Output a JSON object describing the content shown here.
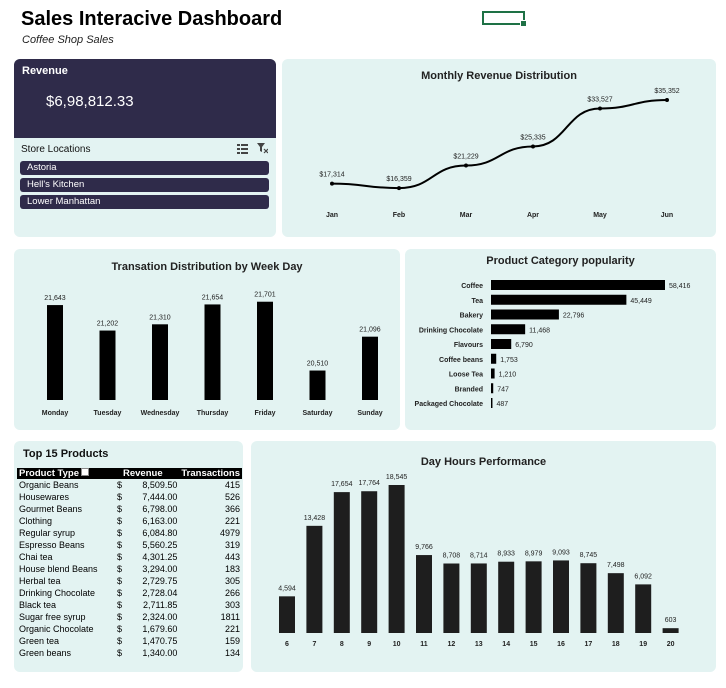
{
  "header": {
    "title": "Sales Interacive Dashboard",
    "subtitle": "Coffee Shop Sales"
  },
  "revenue": {
    "label": "Revenue",
    "value": "$6,98,812.33"
  },
  "slicer": {
    "title": "Store Locations",
    "items": [
      "Astoria",
      "Hell's Kitchen",
      "Lower Manhattan"
    ]
  },
  "colors": {
    "panel_bg": "#e3f3f2",
    "dark": "#2f2b4a",
    "bar": "#000000"
  },
  "chart_data": [
    {
      "id": "monthly",
      "type": "line",
      "title": "Monthly Revenue Distribution",
      "categories": [
        "Jan",
        "Feb",
        "Mar",
        "Apr",
        "May",
        "Jun"
      ],
      "values": [
        17314,
        16359,
        21229,
        25335,
        33527,
        35352
      ],
      "labels": [
        "$17,314",
        "$16,359",
        "$21,229",
        "$25,335",
        "$33,527",
        "$35,352"
      ],
      "ylim": [
        14000,
        36000
      ]
    },
    {
      "id": "weekday",
      "type": "bar",
      "title": "Transation Distribution by Week Day",
      "categories": [
        "Monday",
        "Tuesday",
        "Wednesday",
        "Thursday",
        "Friday",
        "Saturday",
        "Sunday"
      ],
      "values": [
        21643,
        21202,
        21310,
        21654,
        21701,
        20510,
        21096
      ],
      "labels": [
        "21,643",
        "21,202",
        "21,310",
        "21,654",
        "21,701",
        "20,510",
        "21,096"
      ],
      "ylim": [
        20000,
        21800
      ]
    },
    {
      "id": "category",
      "type": "bar",
      "orientation": "horizontal",
      "title": "Product Category popularity",
      "categories": [
        "Coffee",
        "Tea",
        "Bakery",
        "Drinking Chocolate",
        "Flavours",
        "Coffee beans",
        "Loose Tea",
        "Branded",
        "Packaged Chocolate"
      ],
      "values": [
        58416,
        45449,
        22796,
        11468,
        6790,
        1753,
        1210,
        747,
        487
      ],
      "labels": [
        "58,416",
        "45,449",
        "22,796",
        "11,468",
        "6,790",
        "1,753",
        "1,210",
        "747",
        "487"
      ],
      "xlim": [
        0,
        58416
      ]
    },
    {
      "id": "hours",
      "type": "bar",
      "title": "Day Hours Performance",
      "categories": [
        "6",
        "7",
        "8",
        "9",
        "10",
        "11",
        "12",
        "13",
        "14",
        "15",
        "16",
        "17",
        "18",
        "19",
        "20"
      ],
      "values": [
        4594,
        13428,
        17654,
        17764,
        18545,
        9766,
        8708,
        8714,
        8933,
        8979,
        9093,
        8745,
        7498,
        6092,
        603
      ],
      "labels": [
        "4,594",
        "13,428",
        "17,654",
        "17,764",
        "18,545",
        "9,766",
        "8,708",
        "8,714",
        "8,933",
        "8,979",
        "9,093",
        "8,745",
        "7,498",
        "6,092",
        "603"
      ],
      "ylim": [
        0,
        18545
      ]
    }
  ],
  "top_products": {
    "title": "Top 15 Products",
    "headers": [
      "Product Type",
      "Revenue",
      "Transactions"
    ],
    "currency": "$",
    "rows": [
      {
        "name": "Organic Beans",
        "revenue": "8,509.50",
        "transactions": "415"
      },
      {
        "name": "Housewares",
        "revenue": "7,444.00",
        "transactions": "526"
      },
      {
        "name": "Gourmet Beans",
        "revenue": "6,798.00",
        "transactions": "366"
      },
      {
        "name": "Clothing",
        "revenue": "6,163.00",
        "transactions": "221"
      },
      {
        "name": "Regular syrup",
        "revenue": "6,084.80",
        "transactions": "4979"
      },
      {
        "name": "Espresso Beans",
        "revenue": "5,560.25",
        "transactions": "319"
      },
      {
        "name": "Chai tea",
        "revenue": "4,301.25",
        "transactions": "443"
      },
      {
        "name": "House blend Beans",
        "revenue": "3,294.00",
        "transactions": "183"
      },
      {
        "name": "Herbal tea",
        "revenue": "2,729.75",
        "transactions": "305"
      },
      {
        "name": "Drinking Chocolate",
        "revenue": "2,728.04",
        "transactions": "266"
      },
      {
        "name": "Black tea",
        "revenue": "2,711.85",
        "transactions": "303"
      },
      {
        "name": "Sugar free syrup",
        "revenue": "2,324.00",
        "transactions": "1811"
      },
      {
        "name": "Organic Chocolate",
        "revenue": "1,679.60",
        "transactions": "221"
      },
      {
        "name": "Green tea",
        "revenue": "1,470.75",
        "transactions": "159"
      },
      {
        "name": "Green beans",
        "revenue": "1,340.00",
        "transactions": "134"
      }
    ]
  }
}
